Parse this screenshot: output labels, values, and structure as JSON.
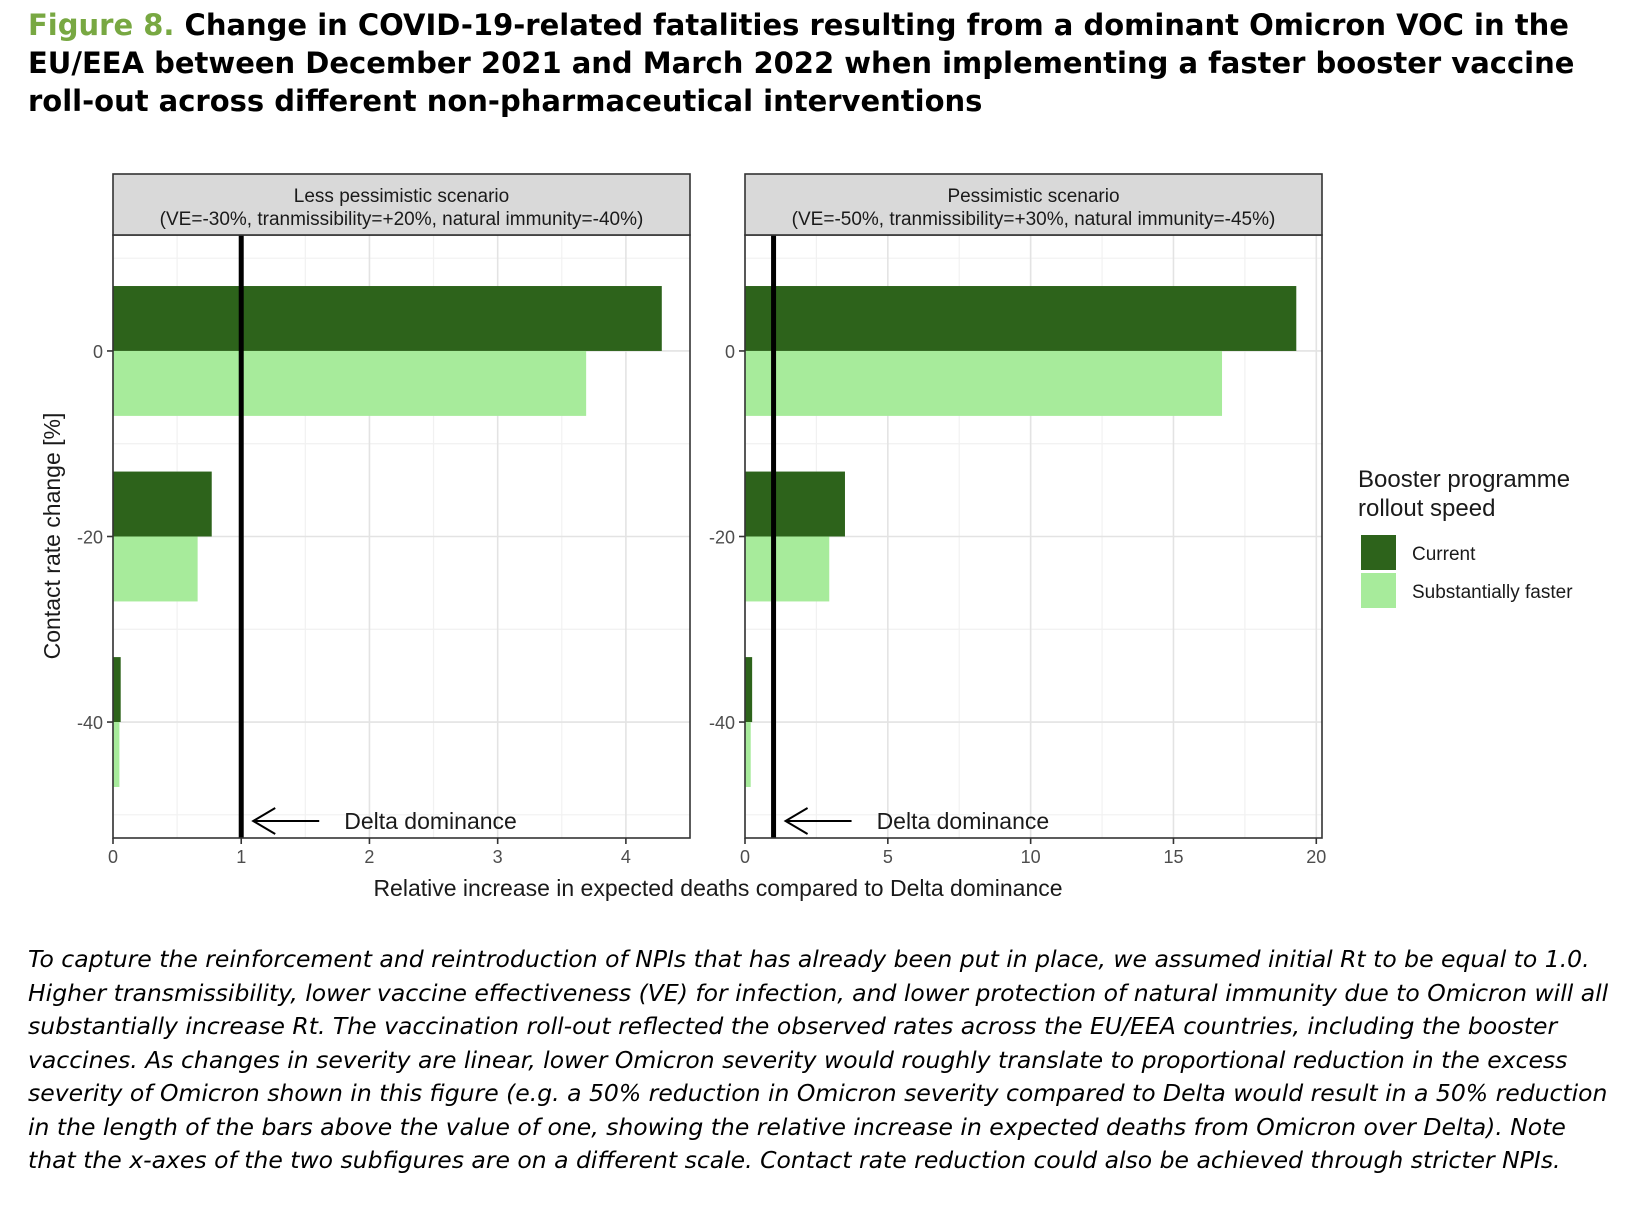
{
  "figure": {
    "label": "Figure 8.",
    "title": "Change in COVID-19-related fatalities resulting from a dominant Omicron VOC in the EU/EEA between December 2021 and March 2022 when implementing a faster booster vaccine roll-out across different non-pharmaceutical interventions",
    "caption": "To capture the reinforcement and reintroduction of NPIs that has already been put in place, we assumed initial Rt to be equal to 1.0. Higher transmissibility, lower vaccine effectiveness (VE) for infection, and lower protection of natural immunity due to Omicron will all substantially increase Rt. The vaccination roll-out reflected the observed rates across the EU/EEA countries, including the booster vaccines. As changes in severity are linear, lower Omicron severity would roughly translate to proportional reduction in the excess severity of Omicron shown in this figure (e.g. a 50% reduction in Omicron severity compared to Delta would result in a 50% reduction in the length of the bars above the value of one, showing the relative increase in expected deaths from Omicron over Delta). Note that the x-axes of the two subfigures are on a different scale. Contact rate reduction could also be achieved through stricter NPIs."
  },
  "chart_data": {
    "type": "bar",
    "orientation": "horizontal",
    "xlabel": "Relative increase in expected deaths compared to Delta dominance",
    "ylabel": "Contact rate change [%]",
    "categories": [
      0,
      -20,
      -40
    ],
    "ylim": [
      -52.5,
      12.5
    ],
    "legend": {
      "title_line1": "Booster programme",
      "title_line2": "rollout speed",
      "placement": "right"
    },
    "colors": {
      "Current": "#2d631b",
      "Substantially faster": "#a7eb9b"
    },
    "reference_line": {
      "x": 1,
      "label": "Delta dominance"
    },
    "grid": true,
    "panels": [
      {
        "title_line1": "Less pessimistic scenario",
        "title_line2": "(VE=-30%, tranmissibility=+20%, natural immunity=-40%)",
        "xlim": [
          0,
          4.5
        ],
        "xticks": [
          0,
          1,
          2,
          3,
          4
        ],
        "series": [
          {
            "name": "Current",
            "values": [
              4.28,
              0.77,
              0.06
            ]
          },
          {
            "name": "Substantially faster",
            "values": [
              3.69,
              0.66,
              0.05
            ]
          }
        ]
      },
      {
        "title_line1": "Pessimistic scenario",
        "title_line2": "(VE=-50%, tranmissibility=+30%, natural immunity=-45%)",
        "xlim": [
          0,
          20.2
        ],
        "xticks": [
          0,
          5,
          10,
          15,
          20
        ],
        "series": [
          {
            "name": "Current",
            "values": [
              19.3,
              3.5,
              0.25
            ]
          },
          {
            "name": "Substantially faster",
            "values": [
              16.7,
              2.95,
              0.2
            ]
          }
        ]
      }
    ]
  }
}
